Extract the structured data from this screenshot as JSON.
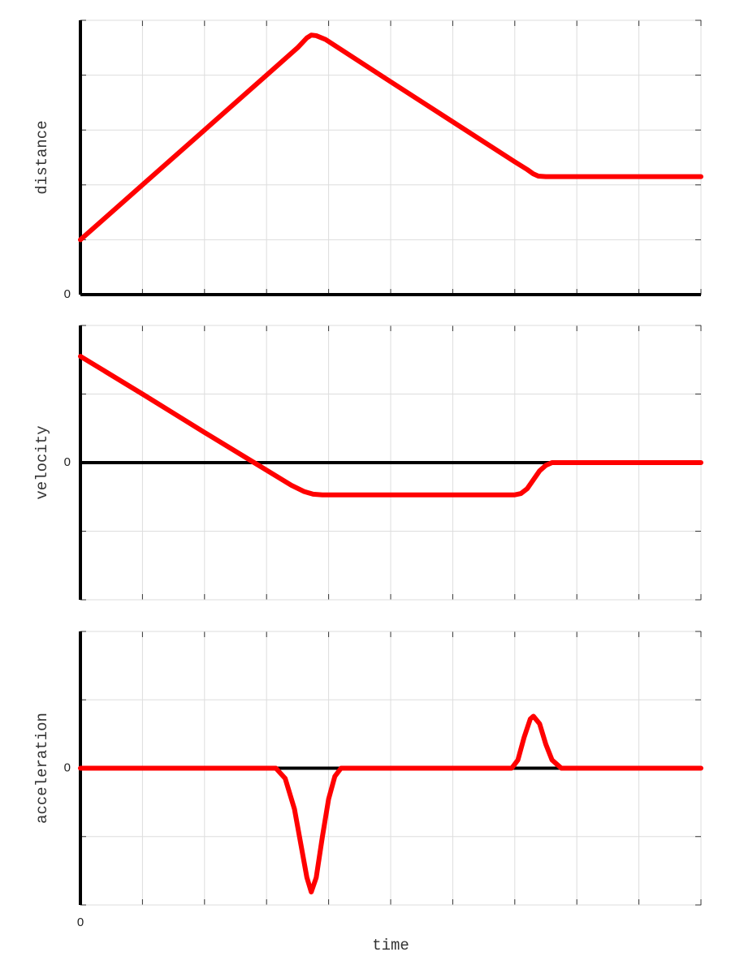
{
  "chart_data": [
    {
      "type": "line",
      "ylabel": "distance",
      "color": "#ff0000",
      "grid": true,
      "x": [
        0,
        1,
        2,
        3,
        3.5,
        3.65,
        3.72,
        3.8,
        3.95,
        5,
        6,
        7,
        7.2,
        7.3,
        7.38,
        7.5,
        8,
        9,
        10
      ],
      "values": [
        1.0,
        2.0,
        3.0,
        4.0,
        4.5,
        4.68,
        4.73,
        4.72,
        4.65,
        3.88,
        3.15,
        2.42,
        2.28,
        2.2,
        2.16,
        2.15,
        2.15,
        2.15,
        2.15
      ],
      "xlim": [
        0,
        10
      ],
      "ylim": [
        0,
        5
      ],
      "xticks": [
        {
          "value": 0,
          "label": null
        },
        {
          "value": 1,
          "label": null
        },
        {
          "value": 2,
          "label": null
        },
        {
          "value": 3,
          "label": null
        },
        {
          "value": 4,
          "label": null
        },
        {
          "value": 5,
          "label": null
        },
        {
          "value": 6,
          "label": null
        },
        {
          "value": 7,
          "label": null
        },
        {
          "value": 8,
          "label": null
        },
        {
          "value": 9,
          "label": null
        },
        {
          "value": 10,
          "label": null
        }
      ],
      "yticks": [
        0,
        {
          "value": 1,
          "label": null
        },
        {
          "value": 2,
          "label": null
        },
        {
          "value": 3,
          "label": null
        },
        {
          "value": 4,
          "label": null
        },
        {
          "value": 5,
          "label": null
        }
      ]
    },
    {
      "type": "line",
      "ylabel": "velocity",
      "color": "#ff0000",
      "grid": true,
      "x": [
        0,
        1,
        2,
        2.8,
        3.4,
        3.6,
        3.75,
        3.9,
        4.5,
        5.5,
        6.5,
        7.0,
        7.1,
        7.2,
        7.3,
        7.4,
        7.5,
        7.6,
        8,
        9,
        10
      ],
      "values": [
        1.55,
        1.0,
        0.44,
        0,
        -0.33,
        -0.42,
        -0.46,
        -0.47,
        -0.47,
        -0.47,
        -0.47,
        -0.47,
        -0.45,
        -0.38,
        -0.25,
        -0.12,
        -0.04,
        0,
        0,
        0,
        0
      ],
      "xlim": [
        0,
        10
      ],
      "ylim": [
        -2,
        2
      ],
      "xticks": [
        {
          "value": 0,
          "label": null
        },
        {
          "value": 1,
          "label": null
        },
        {
          "value": 2,
          "label": null
        },
        {
          "value": 3,
          "label": null
        },
        {
          "value": 4,
          "label": null
        },
        {
          "value": 5,
          "label": null
        },
        {
          "value": 6,
          "label": null
        },
        {
          "value": 7,
          "label": null
        },
        {
          "value": 8,
          "label": null
        },
        {
          "value": 9,
          "label": null
        },
        {
          "value": 10,
          "label": null
        }
      ],
      "yticks": [
        {
          "value": -2,
          "label": null
        },
        {
          "value": -1,
          "label": null
        },
        0,
        {
          "value": 1,
          "label": null
        },
        {
          "value": 2,
          "label": null
        }
      ]
    },
    {
      "type": "line",
      "ylabel": "acceleration",
      "xlabel": "time",
      "color": "#ff0000",
      "grid": true,
      "x": [
        0,
        1,
        2,
        3,
        3.15,
        3.3,
        3.45,
        3.55,
        3.65,
        3.72,
        3.8,
        3.9,
        4.0,
        4.1,
        4.2,
        5,
        6,
        6.95,
        7.05,
        7.15,
        7.25,
        7.3,
        7.4,
        7.5,
        7.6,
        7.75,
        8,
        9,
        10
      ],
      "values": [
        0,
        0,
        0,
        0,
        0,
        -0.15,
        -0.6,
        -1.1,
        -1.6,
        -1.81,
        -1.6,
        -1.0,
        -0.45,
        -0.12,
        0,
        0,
        0,
        0,
        0.12,
        0.45,
        0.72,
        0.76,
        0.65,
        0.35,
        0.12,
        0,
        0,
        0,
        0
      ],
      "xlim": [
        0,
        10
      ],
      "ylim": [
        -2,
        2
      ],
      "xticks": [
        0,
        {
          "value": 1,
          "label": null
        },
        {
          "value": 2,
          "label": null
        },
        {
          "value": 3,
          "label": null
        },
        {
          "value": 4,
          "label": null
        },
        {
          "value": 5,
          "label": null
        },
        {
          "value": 6,
          "label": null
        },
        {
          "value": 7,
          "label": null
        },
        {
          "value": 8,
          "label": null
        },
        {
          "value": 9,
          "label": null
        },
        {
          "value": 10,
          "label": null
        }
      ],
      "yticks": [
        {
          "value": -2,
          "label": null
        },
        {
          "value": -1,
          "label": null
        },
        0,
        {
          "value": 1,
          "label": null
        },
        {
          "value": 2,
          "label": null
        }
      ]
    }
  ]
}
